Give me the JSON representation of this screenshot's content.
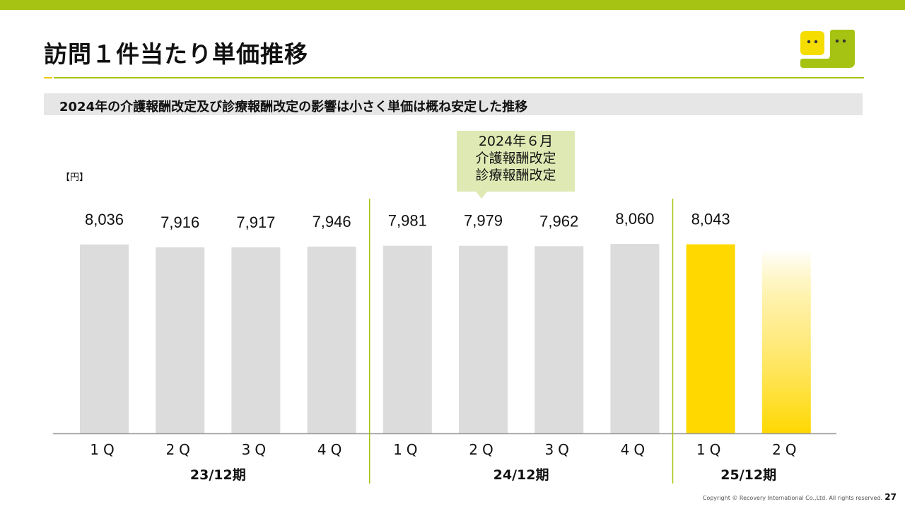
{
  "page": {
    "title": "訪問１件当たり単価推移",
    "subtitle": "2024年の介護報酬改定及び診療報酬改定の影響は小さく単価は概ね安定した推移",
    "unit": "【円】",
    "callout": [
      "2024年６月",
      "介護報酬改定",
      "診療報酬改定"
    ],
    "copyright": "Copyright © Recovery International Co.,Ltd. All rights reserved.",
    "page_number": "27"
  },
  "colors": {
    "accent_green": "#a6c313",
    "bar_gray": "#dcdcdc",
    "bar_yellow": "#ffd800",
    "callout_bg": "#dfe9b4",
    "logo_yellow": "#f5dd00",
    "logo_green": "#a6c313"
  },
  "chart_data": {
    "type": "bar",
    "categories": [
      "1Q",
      "2Q",
      "3Q",
      "4Q",
      "1Q",
      "2Q",
      "3Q",
      "4Q",
      "1Q",
      "2Q"
    ],
    "category_labels": [
      "1Q",
      "2Q",
      "3Q",
      "4Q",
      "1Q",
      "2Q",
      "3Q",
      "4Q",
      "1Q",
      "2Q"
    ],
    "groups": [
      {
        "label": "23/12期",
        "count": 4
      },
      {
        "label": "24/12期",
        "count": 4
      },
      {
        "label": "25/12期",
        "count": 2
      }
    ],
    "values": [
      8036,
      7916,
      7917,
      7946,
      7981,
      7979,
      7962,
      8060,
      8043,
      null
    ],
    "value_labels": [
      "8,036",
      "7,916",
      "7,917",
      "7,946",
      "7,981",
      "7,979",
      "7,962",
      "8,060",
      "8,043",
      ""
    ],
    "bar_styles": [
      "gray",
      "gray",
      "gray",
      "gray",
      "gray",
      "gray",
      "gray",
      "gray",
      "yellow",
      "yellow-fade"
    ],
    "ylabel": "【円】",
    "ylim": [
      0,
      8060
    ],
    "grid": false,
    "legend": "none"
  }
}
